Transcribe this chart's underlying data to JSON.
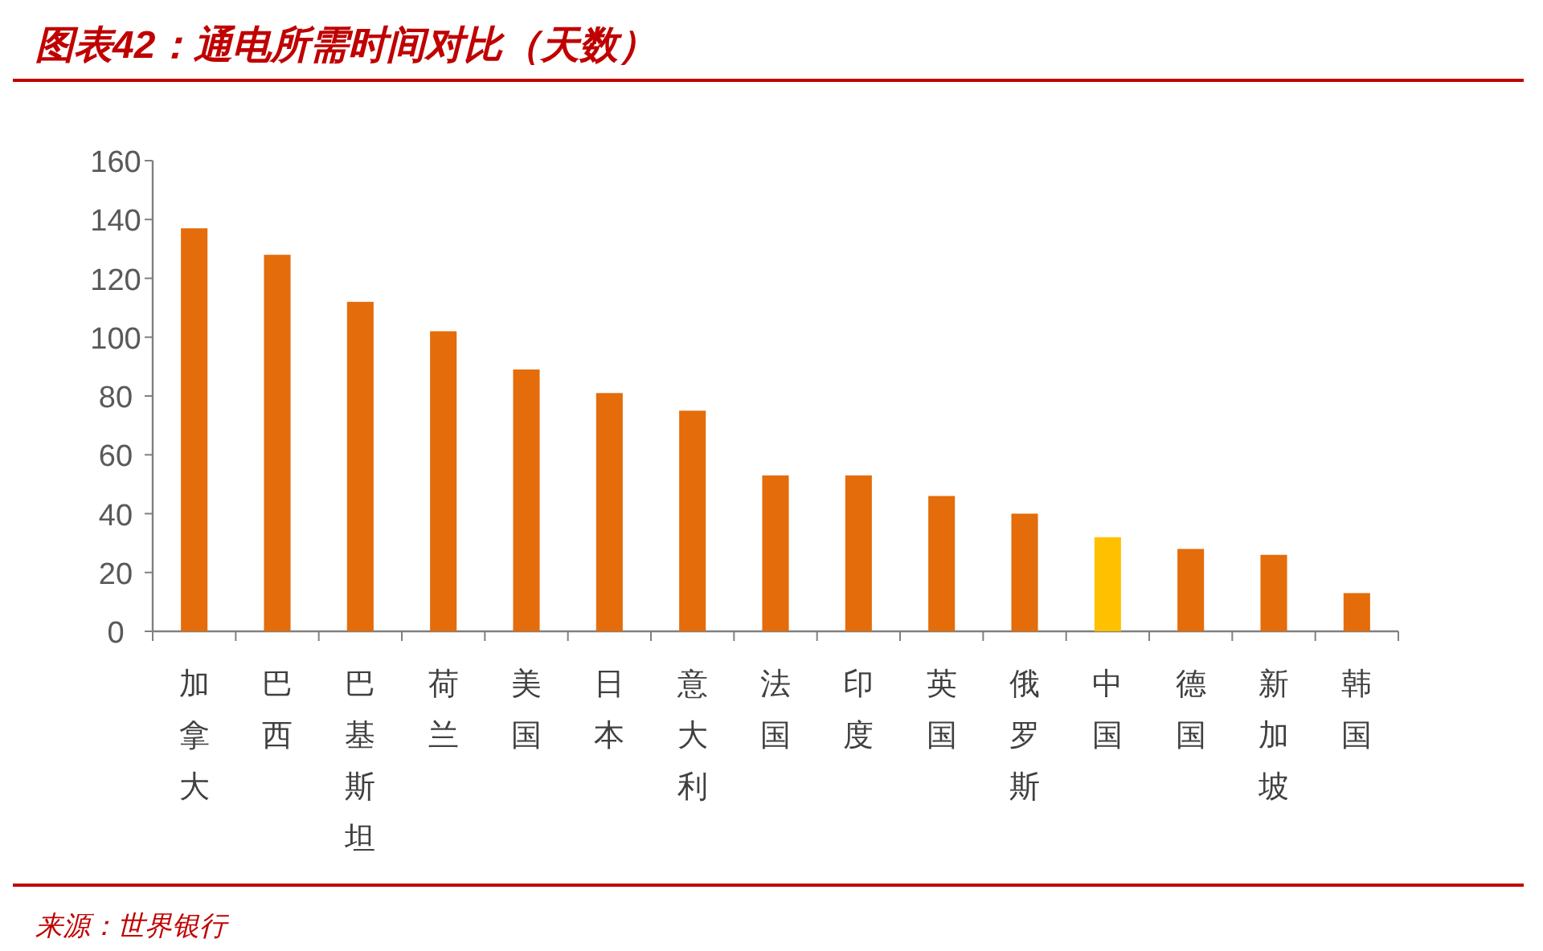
{
  "chart_data": {
    "type": "bar",
    "title": "图表42：通电所需时间对比（天数）",
    "categories": [
      "加拿大",
      "巴西",
      "巴基斯坦",
      "荷兰",
      "美国",
      "日本",
      "意大利",
      "法国",
      "印度",
      "英国",
      "俄罗斯",
      "中国",
      "德国",
      "新加坡",
      "韩国"
    ],
    "values": [
      137,
      128,
      112,
      102,
      89,
      81,
      75,
      53,
      53,
      46,
      40,
      32,
      28,
      26,
      13
    ],
    "colors": [
      "#e46c0a",
      "#e46c0a",
      "#e46c0a",
      "#e46c0a",
      "#e46c0a",
      "#e46c0a",
      "#e46c0a",
      "#e46c0a",
      "#e46c0a",
      "#e46c0a",
      "#e46c0a",
      "#ffc000",
      "#e46c0a",
      "#e46c0a",
      "#e46c0a"
    ],
    "ylim": [
      0,
      160
    ],
    "yticks": [
      0,
      20,
      40,
      60,
      80,
      100,
      120,
      140,
      160
    ],
    "grid": false,
    "annotations": [
      "来源：世界银行"
    ]
  }
}
